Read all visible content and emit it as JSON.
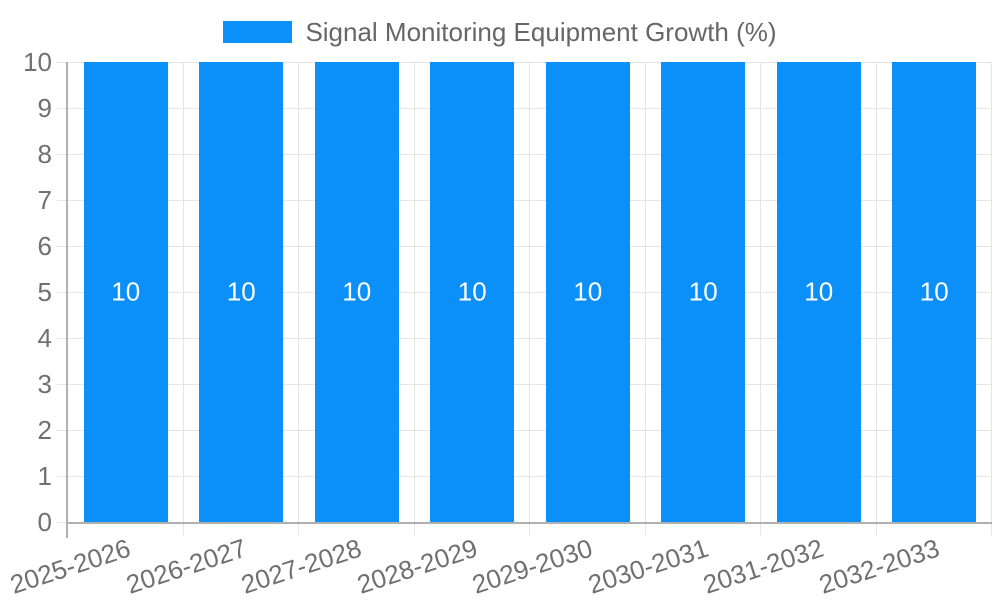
{
  "chart_data": {
    "type": "bar",
    "title": "Signal Monitoring Equipment Growth (%)",
    "categories": [
      "2025-2026",
      "2026-2027",
      "2027-2028",
      "2028-2029",
      "2029-2030",
      "2030-2031",
      "2031-2032",
      "2032-2033"
    ],
    "series": [
      {
        "name": "Signal Monitoring Equipment Growth (%)",
        "values": [
          10,
          10,
          10,
          10,
          10,
          10,
          10,
          10
        ]
      }
    ],
    "bar_labels": [
      "10",
      "10",
      "10",
      "10",
      "10",
      "10",
      "10",
      "10"
    ],
    "xlabel": "",
    "ylabel": "",
    "ylim": [
      0,
      10
    ],
    "yticks": [
      0,
      1,
      2,
      3,
      4,
      5,
      6,
      7,
      8,
      9,
      10
    ],
    "grid": true,
    "legend_position": "top",
    "x_tick_rotation_deg": -18,
    "colors": {
      "bar": "#0a90f8",
      "bar_label": "#ffffff",
      "grid": "#e5e5e5",
      "axis": "#b0b0b0",
      "tick_label": "#707070",
      "legend_label": "#666666",
      "background": "#ffffff"
    }
  },
  "legend": {
    "label": "Signal Monitoring Equipment Growth (%)"
  }
}
